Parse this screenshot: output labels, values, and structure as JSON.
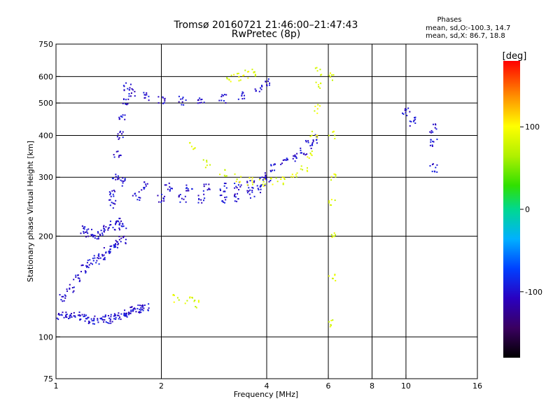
{
  "header": {
    "title": "Tromsø 20160721 21:46:00–21:47:43",
    "subtitle": "RwPretec (8p)"
  },
  "stats": {
    "title": "Phases",
    "line_o": "mean, sd,O:-100.3, 14.7",
    "line_x": "mean, sd,X:  86.7, 18.8"
  },
  "colorbar": {
    "label": "[deg]",
    "ticks": [
      {
        "value": 100,
        "label": "100"
      },
      {
        "value": 0,
        "label": "0"
      },
      {
        "value": -100,
        "label": "-100"
      }
    ],
    "range": [
      -180,
      180
    ],
    "colormap": "rainbow (black-purple-blue-cyan-green-yellow-orange-red)"
  },
  "chart_data": {
    "type": "scatter",
    "title": "Tromsø 20160721 21:46:00–21:47:43",
    "subtitle": "RwPretec (8p)",
    "xlabel": "Frequency [MHz]",
    "ylabel": "Stationary phase Virtual Height [km]",
    "xscale": "log",
    "yscale": "log",
    "xlim": [
      1,
      16
    ],
    "ylim": [
      75,
      750
    ],
    "xticks": [
      {
        "value": 1,
        "label": "1"
      },
      {
        "value": 2,
        "label": "2"
      },
      {
        "value": 4,
        "label": "4"
      },
      {
        "value": 6,
        "label": "6"
      },
      {
        "value": 8,
        "label": "8"
      },
      {
        "value": 10,
        "label": "10"
      },
      {
        "value": 16,
        "label": "16"
      }
    ],
    "xgrid": [
      2,
      4,
      6,
      8,
      10
    ],
    "yticks": [
      {
        "value": 75,
        "label": "75"
      },
      {
        "value": 100,
        "label": "100"
      },
      {
        "value": 200,
        "label": "200"
      },
      {
        "value": 300,
        "label": "300"
      },
      {
        "value": 400,
        "label": "400"
      },
      {
        "value": 500,
        "label": "500"
      },
      {
        "value": 600,
        "label": "600"
      },
      {
        "value": 750,
        "label": "750"
      }
    ],
    "ygrid": [
      100,
      200,
      300,
      400,
      500,
      600
    ],
    "grid": true,
    "color_by": "phase [deg]",
    "series": [
      {
        "mode": "O",
        "phase_mean": -100.3,
        "phase_sd": 14.7,
        "segments": [
          {
            "x": [
              1.0,
              1.05,
              1.1,
              1.15,
              1.2,
              1.25,
              1.3,
              1.35,
              1.4,
              1.45,
              1.5,
              1.55,
              1.6,
              1.65,
              1.7,
              1.75,
              1.8
            ],
            "y": [
              115,
              117,
              116,
              115,
              114,
              113,
              112,
              114,
              113,
              114,
              115,
              116,
              118,
              120,
              122,
              121,
              122
            ]
          },
          {
            "x": [
              1.05,
              1.1,
              1.15,
              1.2,
              1.25,
              1.3,
              1.35,
              1.4,
              1.45,
              1.5,
              1.55
            ],
            "y": [
              130,
              140,
              150,
              160,
              165,
              170,
              175,
              180,
              185,
              190,
              195
            ]
          },
          {
            "x": [
              1.2,
              1.25,
              1.3,
              1.35,
              1.4,
              1.45,
              1.5,
              1.55
            ],
            "y": [
              210,
              205,
              200,
              205,
              210,
              215,
              220,
              215
            ]
          },
          {
            "x": [
              1.45,
              1.48,
              1.5,
              1.52,
              1.55,
              1.58,
              1.6
            ],
            "y": [
              250,
              300,
              350,
              400,
              450,
              500,
              560
            ]
          },
          {
            "x": [
              1.45,
              1.7,
              2.0,
              2.3,
              2.6,
              3.0,
              3.3,
              3.6,
              3.8,
              4.0
            ],
            "y": [
              270,
              264,
              260,
              260,
              259,
              258,
              260,
              268,
              278,
              292
            ]
          },
          {
            "x": [
              1.55,
              1.8,
              2.1,
              2.4,
              2.7,
              3.0,
              3.3,
              3.6
            ],
            "y": [
              290,
              283,
              280,
              280,
              279,
              280,
              282,
              285
            ]
          },
          {
            "x": [
              1.65,
              1.8,
              2.0,
              2.3,
              2.6,
              3.0,
              3.4,
              3.8,
              4.0
            ],
            "y": [
              540,
              522,
              512,
              508,
              510,
              515,
              525,
              550,
              580
            ]
          },
          {
            "x": [
              3.9,
              4.2,
              4.5,
              4.8,
              5.1,
              5.3,
              5.5
            ],
            "y": [
              300,
              320,
              335,
              345,
              360,
              375,
              390
            ]
          },
          {
            "x": [
              10.0,
              10.5,
              12.0,
              12.0,
              12.0
            ],
            "y": [
              470,
              440,
              420,
              380,
              320
            ]
          }
        ]
      },
      {
        "mode": "X",
        "phase_mean": 86.7,
        "phase_sd": 18.8,
        "segments": [
          {
            "x": [
              2.45,
              2.7,
              3.0,
              3.3,
              3.6,
              3.9,
              4.2,
              4.5,
              4.8,
              5.1,
              5.3,
              5.45,
              5.55,
              5.6,
              5.62
            ],
            "y": [
              370,
              330,
              310,
              298,
              292,
              290,
              290,
              292,
              300,
              320,
              350,
              400,
              480,
              560,
              620
            ]
          },
          {
            "x": [
              6.15,
              6.15,
              6.15,
              6.15,
              6.15,
              6.15,
              6.15
            ],
            "y": [
              110,
              150,
              200,
              250,
              300,
              400,
              600
            ]
          },
          {
            "x": [
              3.1,
              3.3,
              3.5,
              3.7
            ],
            "y": [
              590,
              600,
              610,
              620
            ]
          },
          {
            "x": [
              2.2,
              2.4,
              2.5
            ],
            "y": [
              130,
              128,
              125
            ]
          }
        ]
      }
    ]
  }
}
